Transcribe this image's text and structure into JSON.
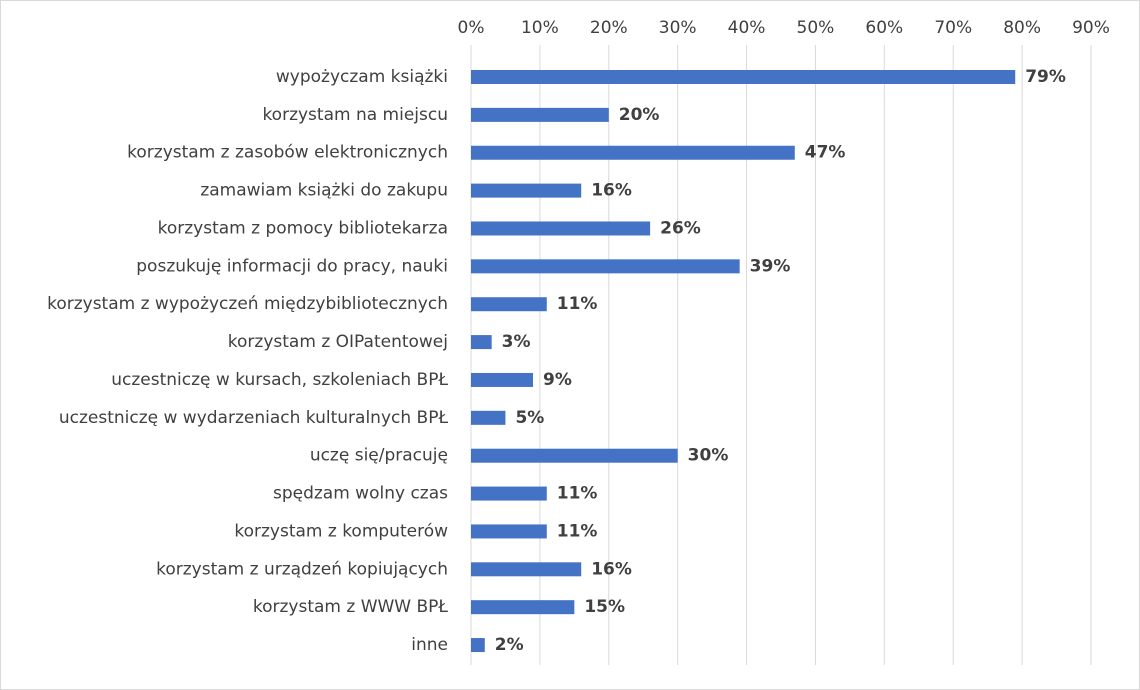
{
  "chart_data": {
    "type": "hbar",
    "categories": [
      "wypożyczam książki",
      "korzystam na miejscu",
      "korzystam z zasobów elektronicznych",
      "zamawiam książki do zakupu",
      "korzystam z pomocy bibliotekarza",
      "poszukuję informacji do pracy, nauki",
      "korzystam z wypożyczeń międzybibliotecznych",
      "korzystam z OIPatentowej",
      "uczestniczę w kursach, szkoleniach BPŁ",
      "uczestniczę w wydarzeniach kulturalnych BPŁ",
      "uczę się/pracuję",
      "spędzam wolny czas",
      "korzystam z komputerów",
      "korzystam z urządzeń kopiujących",
      "korzystam z WWW BPŁ",
      "inne"
    ],
    "values": [
      79,
      20,
      47,
      16,
      26,
      39,
      11,
      3,
      9,
      5,
      30,
      11,
      11,
      16,
      15,
      2
    ],
    "value_labels": [
      "79%",
      "20%",
      "47%",
      "16%",
      "26%",
      "39%",
      "11%",
      "3%",
      "9%",
      "5%",
      "30%",
      "11%",
      "11%",
      "16%",
      "15%",
      "2%"
    ],
    "color": "#4472c4",
    "xlim": [
      0,
      90
    ],
    "xticks": [
      {
        "value": 0,
        "label": "0%"
      },
      {
        "value": 10,
        "label": "10%"
      },
      {
        "value": 20,
        "label": "20%"
      },
      {
        "value": 30,
        "label": "30%"
      },
      {
        "value": 40,
        "label": "40%"
      },
      {
        "value": 50,
        "label": "50%"
      },
      {
        "value": 60,
        "label": "60%"
      },
      {
        "value": 70,
        "label": "70%"
      },
      {
        "value": 80,
        "label": "80%"
      },
      {
        "value": 90,
        "label": "90%"
      }
    ],
    "grid": true
  }
}
